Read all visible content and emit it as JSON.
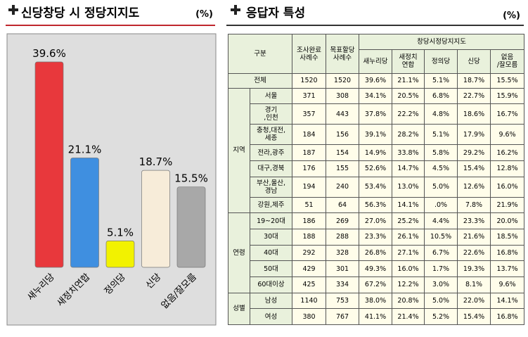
{
  "chart_data": {
    "type": "bar",
    "title": "신당창당 시 정당지지도",
    "unit": "(%)",
    "categories": [
      "새누리당",
      "새정치연합",
      "정의당",
      "신당",
      "없음/잘모름"
    ],
    "values": [
      39.6,
      21.1,
      5.1,
      18.7,
      15.5
    ],
    "value_labels": [
      "39.6%",
      "21.1%",
      "5.1%",
      "18.7%",
      "15.5%"
    ],
    "colors": [
      "#e8383c",
      "#3f8fe0",
      "#f2f200",
      "#f7ecd9",
      "#a8a8a8"
    ]
  },
  "table_panel": {
    "title": "응답자 특성",
    "unit": "(%)",
    "header": {
      "group": "구분",
      "counts": [
        "조사완료\n사례수",
        "목표할당\n사례수"
      ],
      "support": "창당시정당지지도",
      "parties": [
        "새누리당",
        "새정치\n연합",
        "정의당",
        "신당",
        "없음\n/잘모름"
      ]
    },
    "total": {
      "label": "전체",
      "cells": [
        "1520",
        "1520",
        "39.6%",
        "21.1%",
        "5.1%",
        "18.7%",
        "15.5%"
      ]
    },
    "groups": [
      {
        "label": "지역",
        "rows": [
          {
            "label": "서울",
            "cells": [
              "371",
              "308",
              "34.1%",
              "20.5%",
              "6.8%",
              "22.7%",
              "15.9%"
            ]
          },
          {
            "label": "경기\n,인천",
            "cells": [
              "357",
              "443",
              "37.8%",
              "22.2%",
              "4.8%",
              "18.6%",
              "16.7%"
            ]
          },
          {
            "label": "충청,대전,\n세종",
            "cells": [
              "184",
              "156",
              "39.1%",
              "28.2%",
              "5.1%",
              "17.9%",
              "9.6%"
            ]
          },
          {
            "label": "전라,광주",
            "cells": [
              "187",
              "154",
              "14.9%",
              "33.8%",
              "5.8%",
              "29.2%",
              "16.2%"
            ]
          },
          {
            "label": "대구,경북",
            "cells": [
              "176",
              "155",
              "52.6%",
              "14.7%",
              "4.5%",
              "15.4%",
              "12.8%"
            ]
          },
          {
            "label": "부산,울산,\n경남",
            "cells": [
              "194",
              "240",
              "53.4%",
              "13.0%",
              "5.0%",
              "12.6%",
              "16.0%"
            ]
          },
          {
            "label": "강원,제주",
            "cells": [
              "51",
              "64",
              "56.3%",
              "14.1%",
              ".0%",
              "7.8%",
              "21.9%"
            ]
          }
        ]
      },
      {
        "label": "연령",
        "rows": [
          {
            "label": "19~20대",
            "cells": [
              "186",
              "269",
              "27.0%",
              "25.2%",
              "4.4%",
              "23.3%",
              "20.0%"
            ]
          },
          {
            "label": "30대",
            "cells": [
              "188",
              "288",
              "23.3%",
              "26.1%",
              "10.5%",
              "21.6%",
              "18.5%"
            ]
          },
          {
            "label": "40대",
            "cells": [
              "292",
              "328",
              "26.8%",
              "27.1%",
              "6.7%",
              "22.6%",
              "16.8%"
            ]
          },
          {
            "label": "50대",
            "cells": [
              "429",
              "301",
              "49.3%",
              "16.0%",
              "1.7%",
              "19.3%",
              "13.7%"
            ]
          },
          {
            "label": "60대이상",
            "cells": [
              "425",
              "334",
              "67.2%",
              "12.2%",
              "3.0%",
              "8.1%",
              "9.6%"
            ]
          }
        ]
      },
      {
        "label": "성별",
        "rows": [
          {
            "label": "남성",
            "cells": [
              "1140",
              "753",
              "38.0%",
              "20.8%",
              "5.0%",
              "22.0%",
              "14.1%"
            ]
          },
          {
            "label": "여성",
            "cells": [
              "380",
              "767",
              "41.1%",
              "21.4%",
              "5.2%",
              "15.4%",
              "16.8%"
            ]
          }
        ]
      }
    ]
  }
}
